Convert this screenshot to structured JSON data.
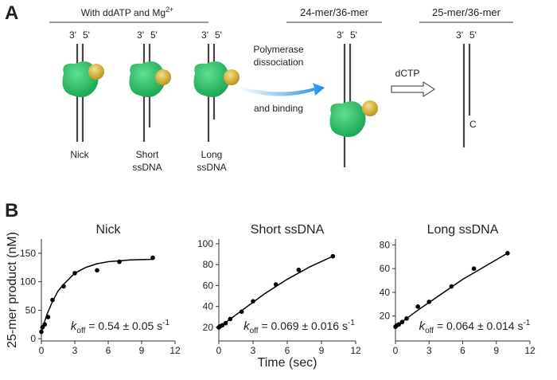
{
  "panel_a": {
    "label": "A",
    "groups": [
      {
        "text": "With ddATP and Mg",
        "sup": "2+"
      },
      {
        "text": "24-mer/36-mer"
      },
      {
        "text": "25-mer/36-mer"
      }
    ],
    "strand_ends": [
      "3'",
      "5'"
    ],
    "substrates": [
      [
        "Nick"
      ],
      [
        "Short",
        "ssDNA"
      ],
      [
        "Long",
        "ssDNA"
      ]
    ],
    "arrow1": [
      "Polymerase",
      "dissociation",
      "and binding"
    ],
    "arrow2": "dCTP",
    "added_base": "C"
  },
  "panel_b_label": "B",
  "chart_data": [
    {
      "type": "scatter",
      "title": "Nick",
      "ylabel": "25-mer product (nM)",
      "xlim": [
        0,
        12
      ],
      "xticks": [
        0,
        3,
        6,
        9,
        12
      ],
      "ylim": [
        -4,
        175
      ],
      "yticks": [
        0,
        50,
        100,
        150
      ],
      "annotation": {
        "k": "k",
        "sub": "off",
        "text": " = 0.54 ± 0.05 s",
        "sup": "-1"
      },
      "series": [
        {
          "style": "markers",
          "color": "#000000",
          "x": [
            0,
            0.1,
            0.3,
            0.6,
            1,
            2,
            3,
            5,
            7,
            10
          ],
          "values": [
            12,
            20,
            25,
            38,
            68,
            92,
            115,
            120,
            135,
            142
          ]
        },
        {
          "style": "line",
          "color": "#000000",
          "x": [
            0,
            0.5,
            1,
            1.5,
            2,
            3,
            4,
            5,
            6,
            8,
            10
          ],
          "values": [
            12,
            42.5,
            65.4,
            83.7,
            95.5,
            115,
            125.2,
            131.6,
            135.1,
            138.3,
            139.4
          ]
        }
      ]
    },
    {
      "type": "scatter",
      "title": "Short ssDNA",
      "xlabel": "Time (sec)",
      "xlim": [
        0,
        12
      ],
      "xticks": [
        0,
        3,
        6,
        9,
        12
      ],
      "ylim": [
        7,
        104.5
      ],
      "yticks": [
        20,
        40,
        60,
        80,
        100
      ],
      "annotation": {
        "k": "k",
        "sub": "off",
        "text": " = 0.069 ± 0.016 s",
        "sup": "-1"
      },
      "series": [
        {
          "style": "markers",
          "color": "#000000",
          "x": [
            0,
            0.1,
            0.3,
            0.6,
            1,
            2,
            3,
            5,
            7,
            10
          ],
          "values": [
            20,
            21,
            22,
            24,
            28,
            35,
            45,
            61,
            75,
            88
          ]
        },
        {
          "style": "line",
          "color": "#000000",
          "x": [
            0,
            2,
            4,
            6,
            8,
            10
          ],
          "values": [
            20,
            36,
            52,
            66,
            78,
            88
          ]
        }
      ]
    },
    {
      "type": "scatter",
      "title": "Long ssDNA",
      "xlim": [
        0,
        12
      ],
      "xticks": [
        0,
        3,
        6,
        9,
        12
      ],
      "ylim": [
        -1,
        85
      ],
      "yticks": [
        20,
        40,
        60,
        80
      ],
      "annotation": {
        "k": "k",
        "sub": "off",
        "text": " = 0.064 ± 0.014 s",
        "sup": "-1"
      },
      "series": [
        {
          "style": "markers",
          "color": "#000000",
          "x": [
            0,
            0.1,
            0.3,
            0.6,
            1,
            2,
            3,
            5,
            7,
            10
          ],
          "values": [
            11,
            12,
            13,
            15,
            18,
            28,
            32,
            45,
            60,
            73
          ]
        },
        {
          "style": "line",
          "color": "#000000",
          "x": [
            0,
            2,
            4,
            6,
            8,
            10
          ],
          "values": [
            11,
            25,
            38,
            51,
            62,
            73
          ]
        }
      ]
    }
  ]
}
